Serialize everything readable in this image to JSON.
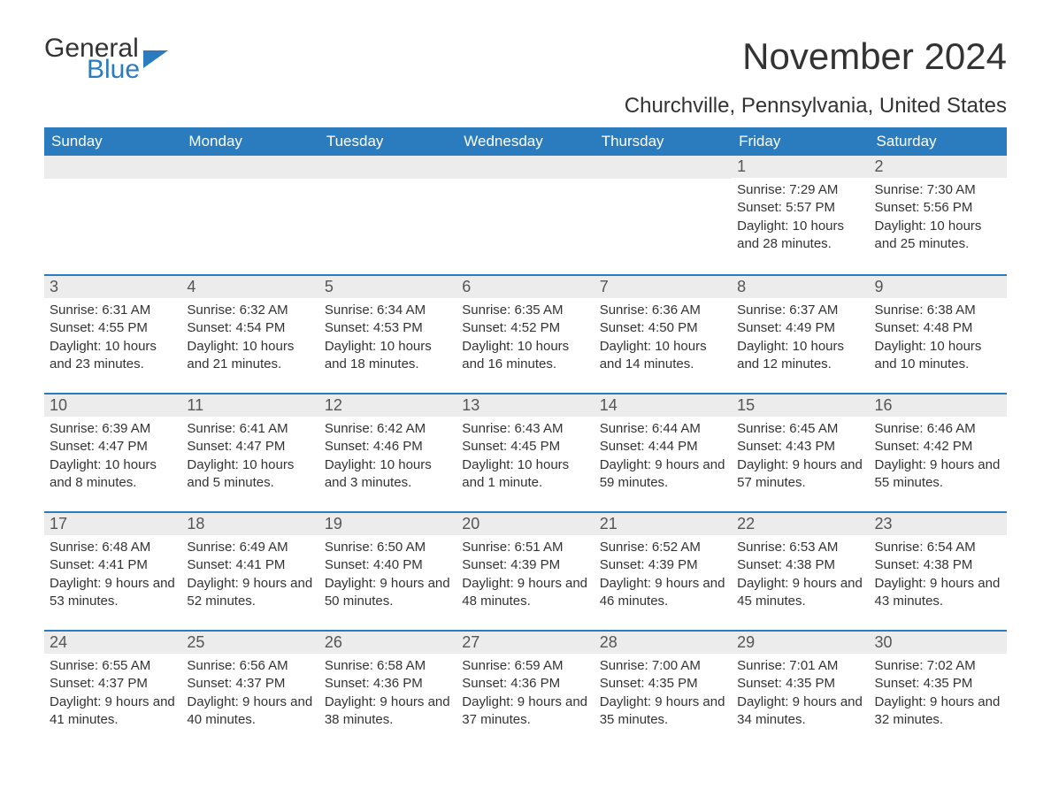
{
  "logo": {
    "text1": "General",
    "text2": "Blue",
    "icon_color": "#2b7bbf"
  },
  "title": "November 2024",
  "location": "Churchville, Pennsylvania, United States",
  "colors": {
    "header_bg": "#2b7bbf",
    "header_text": "#ffffff",
    "daynum_bg": "#ececec",
    "row_border": "#2b7bbf",
    "body_text": "#333333"
  },
  "day_names": [
    "Sunday",
    "Monday",
    "Tuesday",
    "Wednesday",
    "Thursday",
    "Friday",
    "Saturday"
  ],
  "weeks": [
    {
      "days": [
        {
          "n": "",
          "sunrise": "",
          "sunset": "",
          "daylight": ""
        },
        {
          "n": "",
          "sunrise": "",
          "sunset": "",
          "daylight": ""
        },
        {
          "n": "",
          "sunrise": "",
          "sunset": "",
          "daylight": ""
        },
        {
          "n": "",
          "sunrise": "",
          "sunset": "",
          "daylight": ""
        },
        {
          "n": "",
          "sunrise": "",
          "sunset": "",
          "daylight": ""
        },
        {
          "n": "1",
          "sunrise": "Sunrise: 7:29 AM",
          "sunset": "Sunset: 5:57 PM",
          "daylight": "Daylight: 10 hours and 28 minutes."
        },
        {
          "n": "2",
          "sunrise": "Sunrise: 7:30 AM",
          "sunset": "Sunset: 5:56 PM",
          "daylight": "Daylight: 10 hours and 25 minutes."
        }
      ]
    },
    {
      "days": [
        {
          "n": "3",
          "sunrise": "Sunrise: 6:31 AM",
          "sunset": "Sunset: 4:55 PM",
          "daylight": "Daylight: 10 hours and 23 minutes."
        },
        {
          "n": "4",
          "sunrise": "Sunrise: 6:32 AM",
          "sunset": "Sunset: 4:54 PM",
          "daylight": "Daylight: 10 hours and 21 minutes."
        },
        {
          "n": "5",
          "sunrise": "Sunrise: 6:34 AM",
          "sunset": "Sunset: 4:53 PM",
          "daylight": "Daylight: 10 hours and 18 minutes."
        },
        {
          "n": "6",
          "sunrise": "Sunrise: 6:35 AM",
          "sunset": "Sunset: 4:52 PM",
          "daylight": "Daylight: 10 hours and 16 minutes."
        },
        {
          "n": "7",
          "sunrise": "Sunrise: 6:36 AM",
          "sunset": "Sunset: 4:50 PM",
          "daylight": "Daylight: 10 hours and 14 minutes."
        },
        {
          "n": "8",
          "sunrise": "Sunrise: 6:37 AM",
          "sunset": "Sunset: 4:49 PM",
          "daylight": "Daylight: 10 hours and 12 minutes."
        },
        {
          "n": "9",
          "sunrise": "Sunrise: 6:38 AM",
          "sunset": "Sunset: 4:48 PM",
          "daylight": "Daylight: 10 hours and 10 minutes."
        }
      ]
    },
    {
      "days": [
        {
          "n": "10",
          "sunrise": "Sunrise: 6:39 AM",
          "sunset": "Sunset: 4:47 PM",
          "daylight": "Daylight: 10 hours and 8 minutes."
        },
        {
          "n": "11",
          "sunrise": "Sunrise: 6:41 AM",
          "sunset": "Sunset: 4:47 PM",
          "daylight": "Daylight: 10 hours and 5 minutes."
        },
        {
          "n": "12",
          "sunrise": "Sunrise: 6:42 AM",
          "sunset": "Sunset: 4:46 PM",
          "daylight": "Daylight: 10 hours and 3 minutes."
        },
        {
          "n": "13",
          "sunrise": "Sunrise: 6:43 AM",
          "sunset": "Sunset: 4:45 PM",
          "daylight": "Daylight: 10 hours and 1 minute."
        },
        {
          "n": "14",
          "sunrise": "Sunrise: 6:44 AM",
          "sunset": "Sunset: 4:44 PM",
          "daylight": "Daylight: 9 hours and 59 minutes."
        },
        {
          "n": "15",
          "sunrise": "Sunrise: 6:45 AM",
          "sunset": "Sunset: 4:43 PM",
          "daylight": "Daylight: 9 hours and 57 minutes."
        },
        {
          "n": "16",
          "sunrise": "Sunrise: 6:46 AM",
          "sunset": "Sunset: 4:42 PM",
          "daylight": "Daylight: 9 hours and 55 minutes."
        }
      ]
    },
    {
      "days": [
        {
          "n": "17",
          "sunrise": "Sunrise: 6:48 AM",
          "sunset": "Sunset: 4:41 PM",
          "daylight": "Daylight: 9 hours and 53 minutes."
        },
        {
          "n": "18",
          "sunrise": "Sunrise: 6:49 AM",
          "sunset": "Sunset: 4:41 PM",
          "daylight": "Daylight: 9 hours and 52 minutes."
        },
        {
          "n": "19",
          "sunrise": "Sunrise: 6:50 AM",
          "sunset": "Sunset: 4:40 PM",
          "daylight": "Daylight: 9 hours and 50 minutes."
        },
        {
          "n": "20",
          "sunrise": "Sunrise: 6:51 AM",
          "sunset": "Sunset: 4:39 PM",
          "daylight": "Daylight: 9 hours and 48 minutes."
        },
        {
          "n": "21",
          "sunrise": "Sunrise: 6:52 AM",
          "sunset": "Sunset: 4:39 PM",
          "daylight": "Daylight: 9 hours and 46 minutes."
        },
        {
          "n": "22",
          "sunrise": "Sunrise: 6:53 AM",
          "sunset": "Sunset: 4:38 PM",
          "daylight": "Daylight: 9 hours and 45 minutes."
        },
        {
          "n": "23",
          "sunrise": "Sunrise: 6:54 AM",
          "sunset": "Sunset: 4:38 PM",
          "daylight": "Daylight: 9 hours and 43 minutes."
        }
      ]
    },
    {
      "days": [
        {
          "n": "24",
          "sunrise": "Sunrise: 6:55 AM",
          "sunset": "Sunset: 4:37 PM",
          "daylight": "Daylight: 9 hours and 41 minutes."
        },
        {
          "n": "25",
          "sunrise": "Sunrise: 6:56 AM",
          "sunset": "Sunset: 4:37 PM",
          "daylight": "Daylight: 9 hours and 40 minutes."
        },
        {
          "n": "26",
          "sunrise": "Sunrise: 6:58 AM",
          "sunset": "Sunset: 4:36 PM",
          "daylight": "Daylight: 9 hours and 38 minutes."
        },
        {
          "n": "27",
          "sunrise": "Sunrise: 6:59 AM",
          "sunset": "Sunset: 4:36 PM",
          "daylight": "Daylight: 9 hours and 37 minutes."
        },
        {
          "n": "28",
          "sunrise": "Sunrise: 7:00 AM",
          "sunset": "Sunset: 4:35 PM",
          "daylight": "Daylight: 9 hours and 35 minutes."
        },
        {
          "n": "29",
          "sunrise": "Sunrise: 7:01 AM",
          "sunset": "Sunset: 4:35 PM",
          "daylight": "Daylight: 9 hours and 34 minutes."
        },
        {
          "n": "30",
          "sunrise": "Sunrise: 7:02 AM",
          "sunset": "Sunset: 4:35 PM",
          "daylight": "Daylight: 9 hours and 32 minutes."
        }
      ]
    }
  ]
}
